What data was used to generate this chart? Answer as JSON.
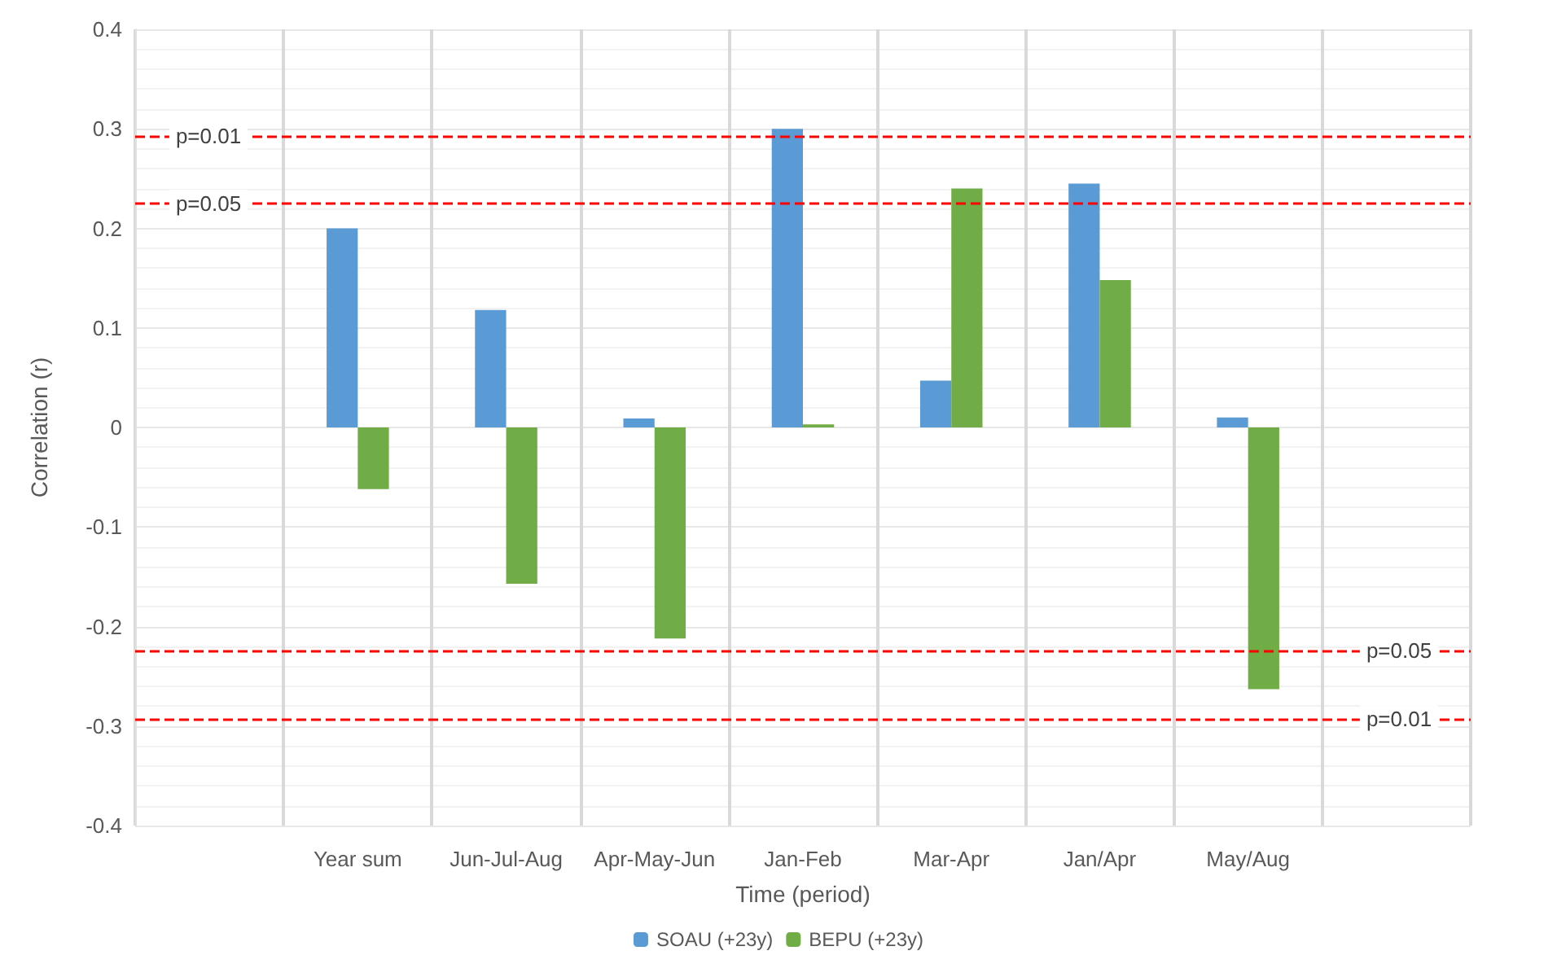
{
  "chart_data": {
    "type": "bar",
    "xlabel": "Time (period)",
    "ylabel": "Correlation (r)",
    "categories": [
      null,
      "Year sum",
      "Jun-Jul-Aug",
      "Apr-May-Jun",
      "Jan-Feb",
      "Mar-Apr",
      "Jan/Apr",
      "May/Aug",
      null
    ],
    "series": [
      {
        "name": "SOAU (+23y)",
        "color": "#5b9bd5",
        "values": [
          null,
          0.2,
          0.118,
          0.009,
          0.3,
          0.047,
          0.245,
          0.01,
          null
        ]
      },
      {
        "name": "BEPU (+23y)",
        "color": "#70ad47",
        "values": [
          null,
          -0.062,
          -0.157,
          -0.212,
          0.003,
          0.24,
          0.148,
          -0.263,
          null
        ]
      }
    ],
    "ylim": [
      -0.4,
      0.4
    ],
    "yticks": [
      -0.4,
      -0.3,
      -0.2,
      -0.1,
      0,
      0.1,
      0.2,
      0.3,
      0.4
    ],
    "grid": true,
    "legend": "bottom",
    "ref_lines": [
      {
        "axis": "y",
        "value": 0.293,
        "color": "#ff0000",
        "line_style": "dashed"
      },
      {
        "axis": "y",
        "value": 0.225,
        "color": "#ff0000",
        "line_style": "dashed"
      },
      {
        "axis": "y",
        "value": -0.224,
        "color": "#ff0000",
        "line_style": "dashed"
      },
      {
        "axis": "y",
        "value": -0.293,
        "color": "#ff0000",
        "line_style": "dashed"
      }
    ],
    "annotations": [
      {
        "text": "p=0.01",
        "y": 0.293
      },
      {
        "text": "p=0.05",
        "y": 0.225
      },
      {
        "text": "p=0.05",
        "y": -0.224
      },
      {
        "text": "p=0.01",
        "y": -0.293
      }
    ]
  }
}
